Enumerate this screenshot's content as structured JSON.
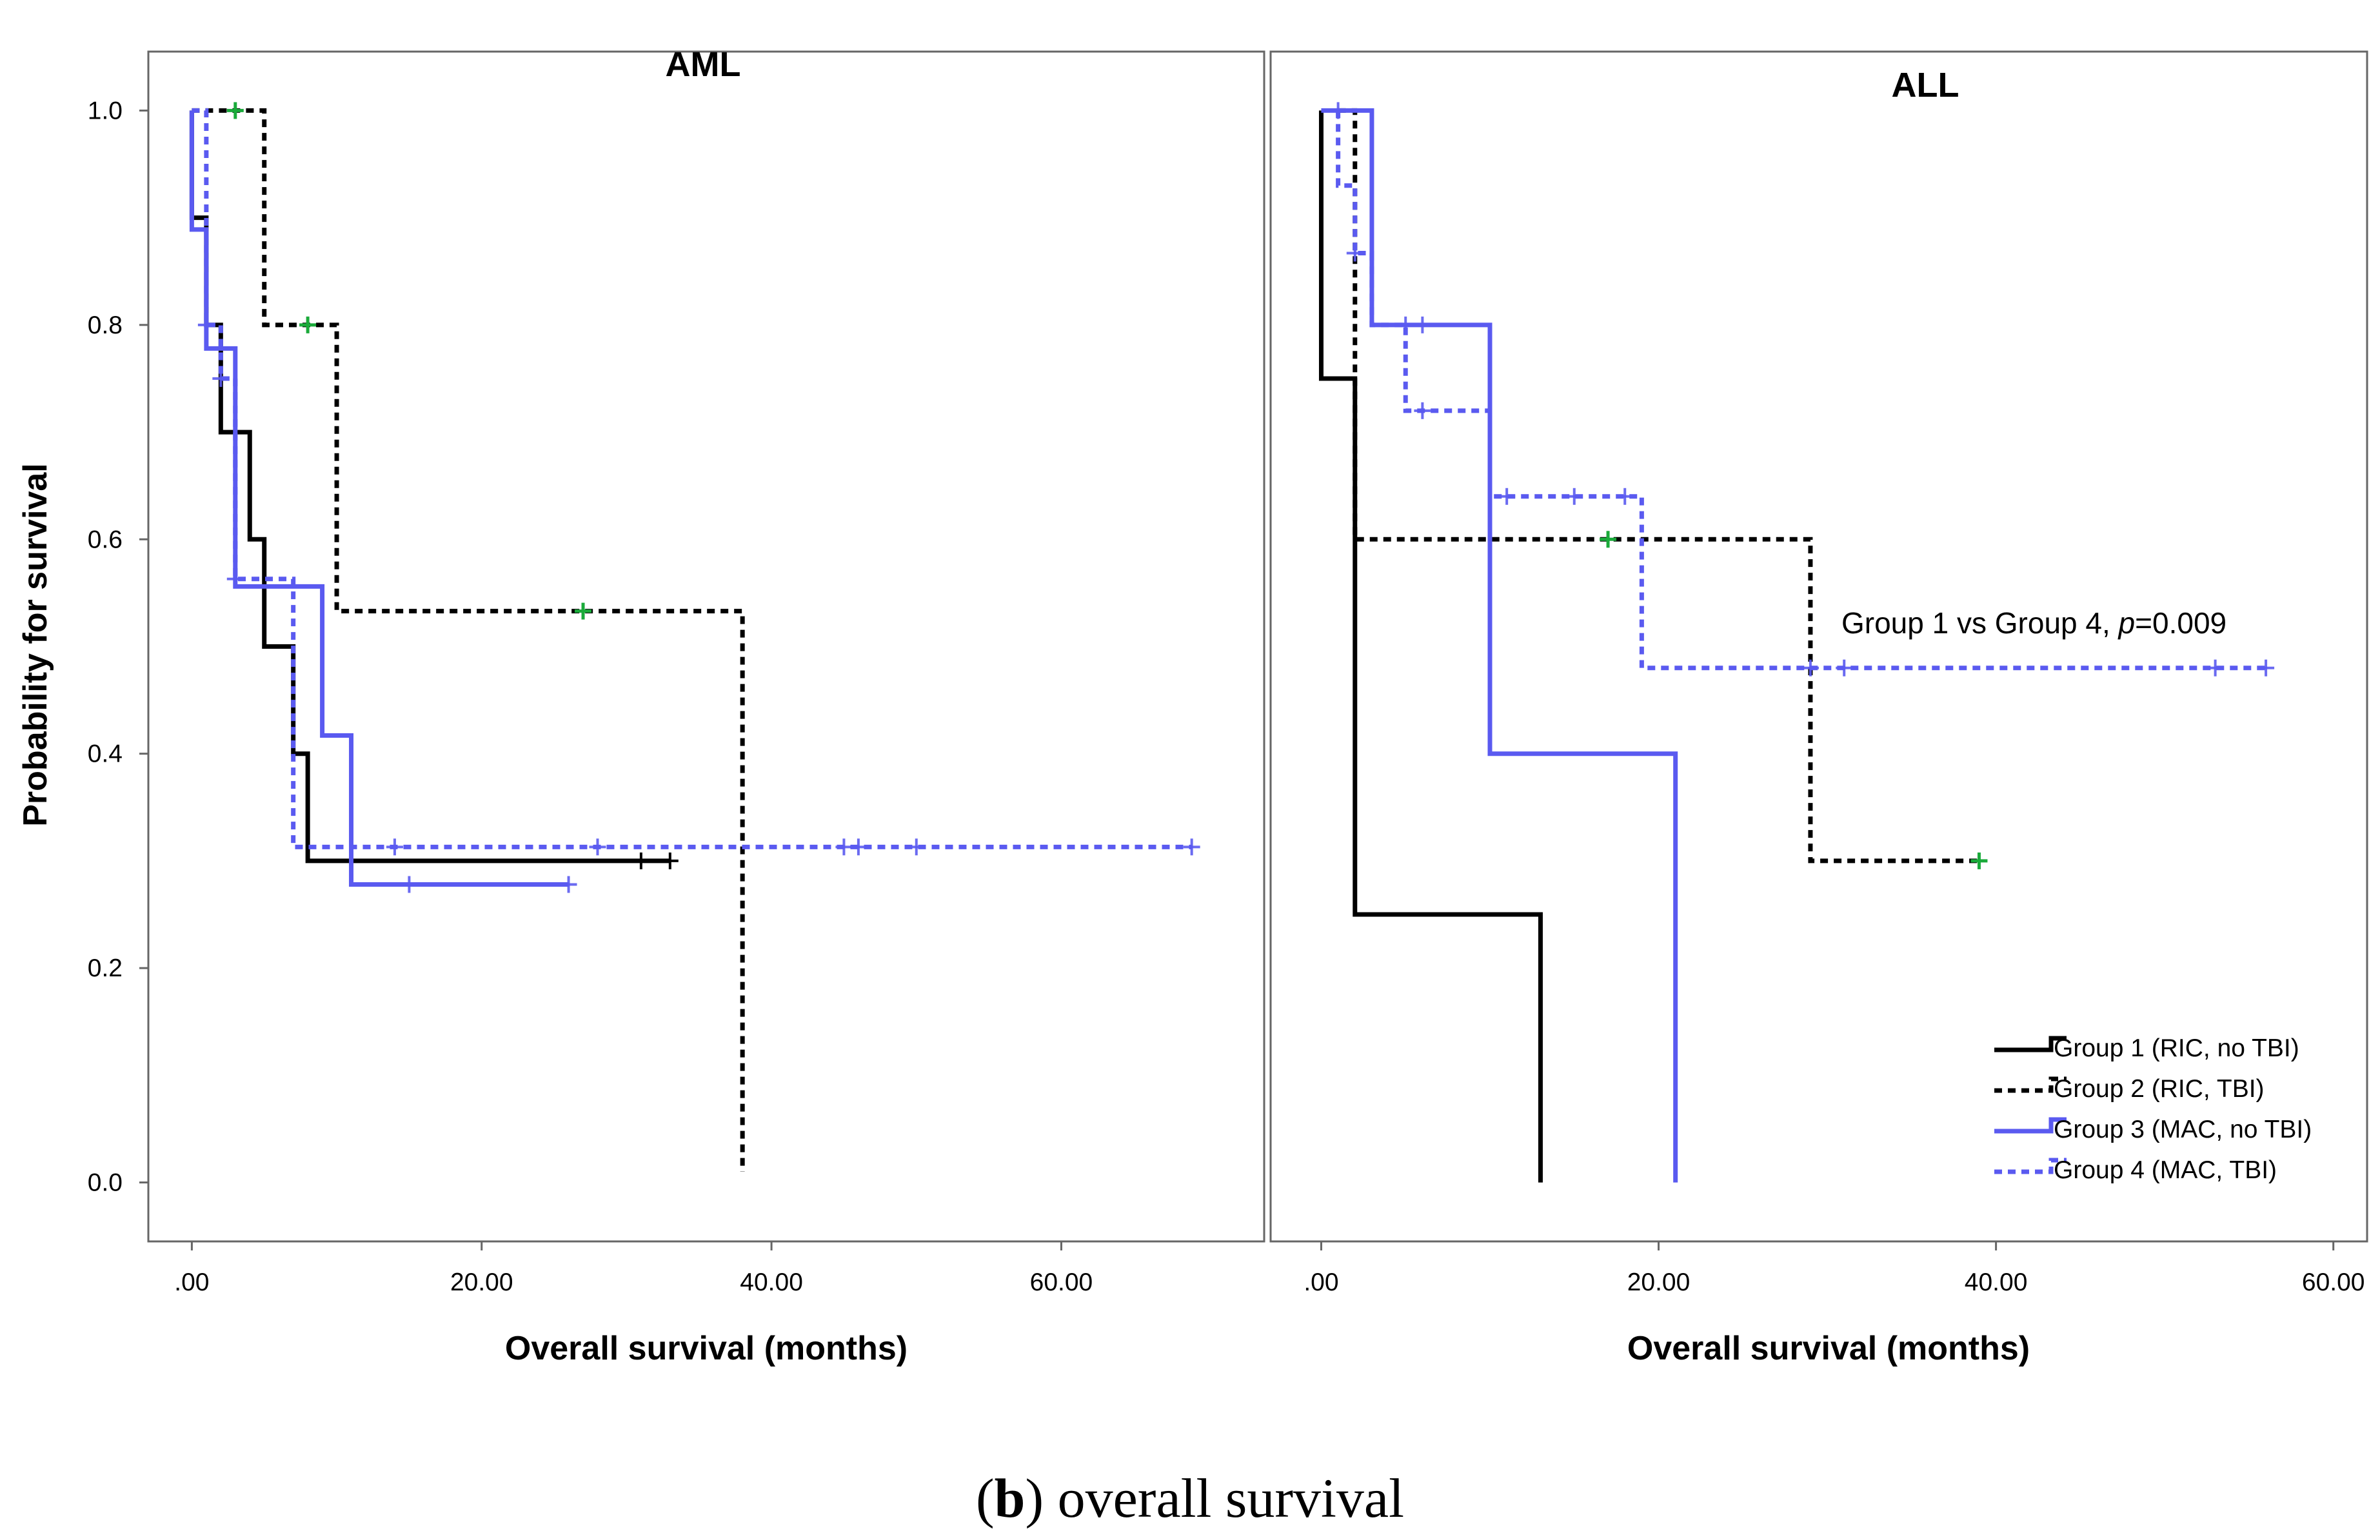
{
  "colors": {
    "group1": "#000000",
    "group2": "#000000",
    "group3": "#5A5AF0",
    "group4": "#5A5AF0",
    "censor_group2": "#1AAA3A",
    "axis": "#666666"
  },
  "chart_data": [
    {
      "type": "line",
      "subtype": "kaplan-meier",
      "title": "AML",
      "xlabel": "Overall survival (months)",
      "ylabel": "Probability for survival",
      "xlim": [
        -3,
        74
      ],
      "ylim": [
        -0.055,
        1.055
      ],
      "xticks": [
        0,
        20,
        40,
        60
      ],
      "xtick_labels": [
        ".00",
        "20.00",
        "40.00",
        "60.00"
      ],
      "yticks": [
        0.0,
        0.2,
        0.4,
        0.6,
        0.8,
        1.0
      ],
      "ytick_labels": [
        "0.0",
        "0.2",
        "0.4",
        "0.6",
        "0.8",
        "1.0"
      ],
      "series": [
        {
          "name": "Group 1 (RIC, no TBI)",
          "style": "solid",
          "steps": [
            [
              0,
              1.0
            ],
            [
              0,
              0.9
            ],
            [
              1,
              0.8
            ],
            [
              2,
              0.7
            ],
            [
              4,
              0.6
            ],
            [
              5,
              0.5
            ],
            [
              7,
              0.4
            ],
            [
              8,
              0.3
            ],
            [
              33,
              0.3
            ]
          ],
          "censored": [
            [
              31,
              0.3
            ],
            [
              33,
              0.3
            ]
          ]
        },
        {
          "name": "Group 2 (RIC, TBI)",
          "style": "dashed",
          "steps": [
            [
              0,
              1.0
            ],
            [
              5,
              0.8
            ],
            [
              10,
              0.533
            ],
            [
              38,
              0.533
            ],
            [
              38,
              0.01
            ]
          ],
          "censored": [
            [
              3,
              1.0
            ],
            [
              8,
              0.8
            ],
            [
              27,
              0.533
            ]
          ]
        },
        {
          "name": "Group 3 (MAC, no TBI)",
          "style": "solid",
          "steps": [
            [
              0,
              1.0
            ],
            [
              0,
              0.889
            ],
            [
              1,
              0.778
            ],
            [
              3,
              0.556
            ],
            [
              9,
              0.417
            ],
            [
              11,
              0.278
            ],
            [
              26,
              0.278
            ]
          ],
          "censored": [
            [
              15,
              0.278
            ],
            [
              26,
              0.278
            ]
          ]
        },
        {
          "name": "Group 4 (MAC, TBI)",
          "style": "dashed",
          "steps": [
            [
              0,
              1.0
            ],
            [
              1,
              0.8
            ],
            [
              2,
              0.75
            ],
            [
              3,
              0.563
            ],
            [
              7,
              0.313
            ],
            [
              69,
              0.313
            ]
          ],
          "censored": [
            [
              1,
              0.8
            ],
            [
              2,
              0.75
            ],
            [
              3,
              0.563
            ],
            [
              14,
              0.313
            ],
            [
              28,
              0.313
            ],
            [
              45,
              0.313
            ],
            [
              46,
              0.313
            ],
            [
              50,
              0.313
            ],
            [
              69,
              0.313
            ]
          ]
        }
      ]
    },
    {
      "type": "line",
      "subtype": "kaplan-meier",
      "title": "ALL",
      "xlabel": "Overall survival (months)",
      "ylabel": "",
      "xlim": [
        -3,
        62
      ],
      "ylim": [
        -0.055,
        1.055
      ],
      "xticks": [
        0,
        20,
        40,
        60
      ],
      "xtick_labels": [
        ".00",
        "20.00",
        "40.00",
        "60.00"
      ],
      "yticks": [
        0.0,
        0.2,
        0.4,
        0.6,
        0.8,
        1.0
      ],
      "ytick_labels": [],
      "annotation": {
        "prefix": "Group 1 vs Group 4, ",
        "p_italic": "p",
        "suffix": "=0.009"
      },
      "series": [
        {
          "name": "Group 1 (RIC, no TBI)",
          "style": "solid",
          "steps": [
            [
              0,
              1.0
            ],
            [
              0,
              0.75
            ],
            [
              2,
              0.25
            ],
            [
              13,
              0.25
            ],
            [
              13,
              0.0
            ]
          ],
          "censored": []
        },
        {
          "name": "Group 2 (RIC, TBI)",
          "style": "dashed",
          "steps": [
            [
              1,
              1.0
            ],
            [
              2,
              0.6
            ],
            [
              29,
              0.6
            ],
            [
              29,
              0.3
            ],
            [
              39,
              0.3
            ]
          ],
          "censored": [
            [
              17,
              0.6
            ],
            [
              39,
              0.3
            ]
          ]
        },
        {
          "name": "Group 3 (MAC, no TBI)",
          "style": "solid",
          "steps": [
            [
              0,
              1.0
            ],
            [
              3,
              0.8
            ],
            [
              10,
              0.4
            ],
            [
              21,
              0.4
            ],
            [
              21,
              0.0
            ]
          ],
          "censored": [
            [
              6,
              0.8
            ]
          ]
        },
        {
          "name": "Group 4 (MAC, TBI)",
          "style": "dashed",
          "steps": [
            [
              1,
              1.0
            ],
            [
              1,
              0.93
            ],
            [
              2,
              0.867
            ],
            [
              3,
              0.8
            ],
            [
              5,
              0.72
            ],
            [
              10,
              0.64
            ],
            [
              19,
              0.48
            ],
            [
              56,
              0.48
            ]
          ],
          "censored": [
            [
              1,
              1.0
            ],
            [
              2,
              0.867
            ],
            [
              5,
              0.8
            ],
            [
              6,
              0.72
            ],
            [
              11,
              0.64
            ],
            [
              15,
              0.64
            ],
            [
              18,
              0.64
            ],
            [
              29,
              0.48
            ],
            [
              31,
              0.48
            ],
            [
              53,
              0.48
            ],
            [
              56,
              0.48
            ]
          ]
        }
      ]
    }
  ],
  "legend": {
    "placement": "bottom-right",
    "entries": [
      {
        "label": "Group 1 (RIC, no TBI)",
        "style": "solid",
        "color": "#000000"
      },
      {
        "label": "Group 2 (RIC, TBI)",
        "style": "dashed",
        "color": "#000000"
      },
      {
        "label": "Group 3 (MAC, no TBI)",
        "style": "solid",
        "color": "#5A5AF0"
      },
      {
        "label": "Group 4 (MAC, TBI)",
        "style": "dashed",
        "color": "#5A5AF0"
      }
    ]
  },
  "caption": {
    "bold": "b",
    "open": "(",
    "close": ")",
    "text": " overall survival"
  }
}
